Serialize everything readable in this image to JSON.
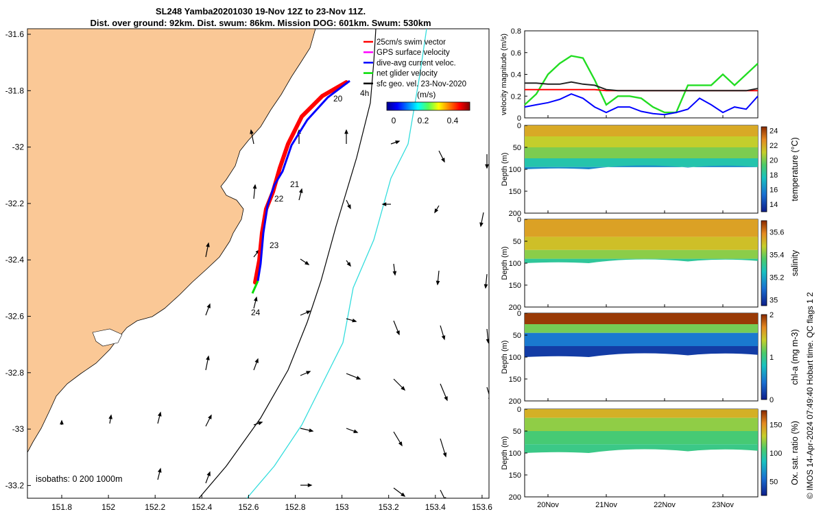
{
  "title": {
    "line1": "SL248 Yamba20201030 19-Nov 12Z to 23-Nov 11Z.",
    "line2": "Dist. over ground: 92km. Dist. swum: 86km. Mission DOG: 601km. Swum: 530km"
  },
  "colors": {
    "land": "#FAC896",
    "ocean": "#FFFFFF",
    "track_swim": "#FF0000",
    "track_current": "#0000FF",
    "net_velocity": "#00DD00",
    "isobath_200": "#000000",
    "isobath_1000": "#33DDDD"
  },
  "map": {
    "lon_ticks": [
      "151.8",
      "152",
      "152.2",
      "152.4",
      "152.6",
      "152.8",
      "153",
      "153.2",
      "153.4",
      "153.6"
    ],
    "lat_ticks": [
      "-31.6",
      "-31.8",
      "-32",
      "-32.2",
      "-32.4",
      "-32.6",
      "-32.8",
      "-33",
      "-33.2"
    ],
    "legend": [
      {
        "label": "25cm/s swim vector",
        "color": "#FF0000"
      },
      {
        "label": "GPS surface velocity",
        "color": "#FF00FF"
      },
      {
        "label": "dive-avg current veloc.",
        "color": "#0000FF"
      },
      {
        "label": "net glider velocity",
        "color": "#00DD00"
      },
      {
        "label": "sfc geo. vel. 23-Nov-2020",
        "color": "#000000"
      }
    ],
    "scale_label": "4h",
    "colorbar_label": "(m/s)",
    "colorbar_ticks": [
      "0",
      "0.2",
      "0.4"
    ],
    "day_labels": [
      "20",
      "21",
      "22",
      "23",
      "24"
    ],
    "isobaths_label": "isobaths: 0   200  1000m"
  },
  "chart_data": [
    {
      "type": "line",
      "ylabel": "velocity magnitude (m/s)",
      "ylim": [
        0,
        0.8
      ],
      "yticks": [
        "0",
        "0.2",
        "0.4",
        "0.6",
        "0.8"
      ],
      "x": [
        19.6,
        19.8,
        20.0,
        20.2,
        20.4,
        20.6,
        20.8,
        21.0,
        21.2,
        21.4,
        21.6,
        21.8,
        22.0,
        22.2,
        22.4,
        22.6,
        22.8,
        23.0,
        23.2,
        23.4,
        23.6
      ],
      "series": [
        {
          "color": "#22DD22",
          "values": [
            0.12,
            0.22,
            0.4,
            0.5,
            0.57,
            0.55,
            0.35,
            0.12,
            0.2,
            0.2,
            0.18,
            0.1,
            0.05,
            0.05,
            0.3,
            0.3,
            0.3,
            0.4,
            0.3,
            0.4,
            0.5
          ]
        },
        {
          "color": "#FF0000",
          "values": [
            0.26,
            0.26,
            0.26,
            0.26,
            0.26,
            0.26,
            0.26,
            0.25,
            0.25,
            0.25,
            0.25,
            0.25,
            0.25,
            0.25,
            0.25,
            0.25,
            0.25,
            0.25,
            0.25,
            0.25,
            0.25
          ]
        },
        {
          "color": "#0000FF",
          "values": [
            0.1,
            0.12,
            0.14,
            0.17,
            0.22,
            0.18,
            0.1,
            0.05,
            0.1,
            0.1,
            0.06,
            0.04,
            0.03,
            0.05,
            0.08,
            0.18,
            0.12,
            0.05,
            0.1,
            0.08,
            0.2
          ]
        },
        {
          "color": "#222222",
          "values": [
            0.32,
            0.32,
            0.31,
            0.31,
            0.33,
            0.31,
            0.3,
            0.26,
            0.25,
            0.25,
            0.25,
            0.25,
            0.25,
            0.25,
            0.25,
            0.25,
            0.25,
            0.25,
            0.25,
            0.25,
            0.27
          ]
        }
      ]
    },
    {
      "type": "heatmap",
      "ylabel": "Depth (m)",
      "yticks": [
        "0",
        "50",
        "100",
        "150",
        "200"
      ],
      "colorbar_label": "temperature (°C)",
      "colorbar_ticks": [
        "24",
        "22",
        "20",
        "18",
        "16",
        "14"
      ],
      "clim": [
        13,
        24.5
      ],
      "layers": [
        [
          0,
          22
        ],
        [
          25,
          21
        ],
        [
          50,
          20
        ],
        [
          75,
          18
        ],
        [
          95,
          16
        ]
      ]
    },
    {
      "type": "heatmap",
      "ylabel": "Depth (m)",
      "yticks": [
        "0",
        "50",
        "100",
        "150",
        "200"
      ],
      "colorbar_label": "salinity",
      "colorbar_ticks": [
        "35.6",
        "35.4",
        "35.2",
        "35"
      ],
      "clim": [
        34.95,
        35.7
      ],
      "layers": [
        [
          0,
          35.55
        ],
        [
          40,
          35.5
        ],
        [
          70,
          35.42
        ],
        [
          90,
          35.3
        ]
      ]
    },
    {
      "type": "heatmap",
      "ylabel": "Depth (m)",
      "yticks": [
        "0",
        "50",
        "100",
        "150",
        "200"
      ],
      "colorbar_label": "chl-a (mg m-3)",
      "colorbar_ticks": [
        "2",
        "1",
        "0"
      ],
      "clim": [
        0,
        2
      ],
      "layers": [
        [
          0,
          1.95
        ],
        [
          25,
          1.2
        ],
        [
          45,
          0.45
        ],
        [
          75,
          0.15
        ]
      ]
    },
    {
      "type": "heatmap",
      "ylabel": "Depth (m)",
      "yticks": [
        "0",
        "50",
        "100",
        "150",
        "200"
      ],
      "xticks": [
        "20Nov",
        "21Nov",
        "22Nov",
        "23Nov"
      ],
      "colorbar_label": "Ox. sat. ratio (%)",
      "colorbar_ticks": [
        "150",
        "100",
        "50"
      ],
      "clim": [
        25,
        175
      ],
      "layers": [
        [
          0,
          140
        ],
        [
          20,
          120
        ],
        [
          50,
          105
        ],
        [
          80,
          100
        ]
      ]
    }
  ],
  "footer": {
    "note": "© IMOS 14-Apr-2024 07:49:40 Hobart time. QC flags 1  2"
  }
}
